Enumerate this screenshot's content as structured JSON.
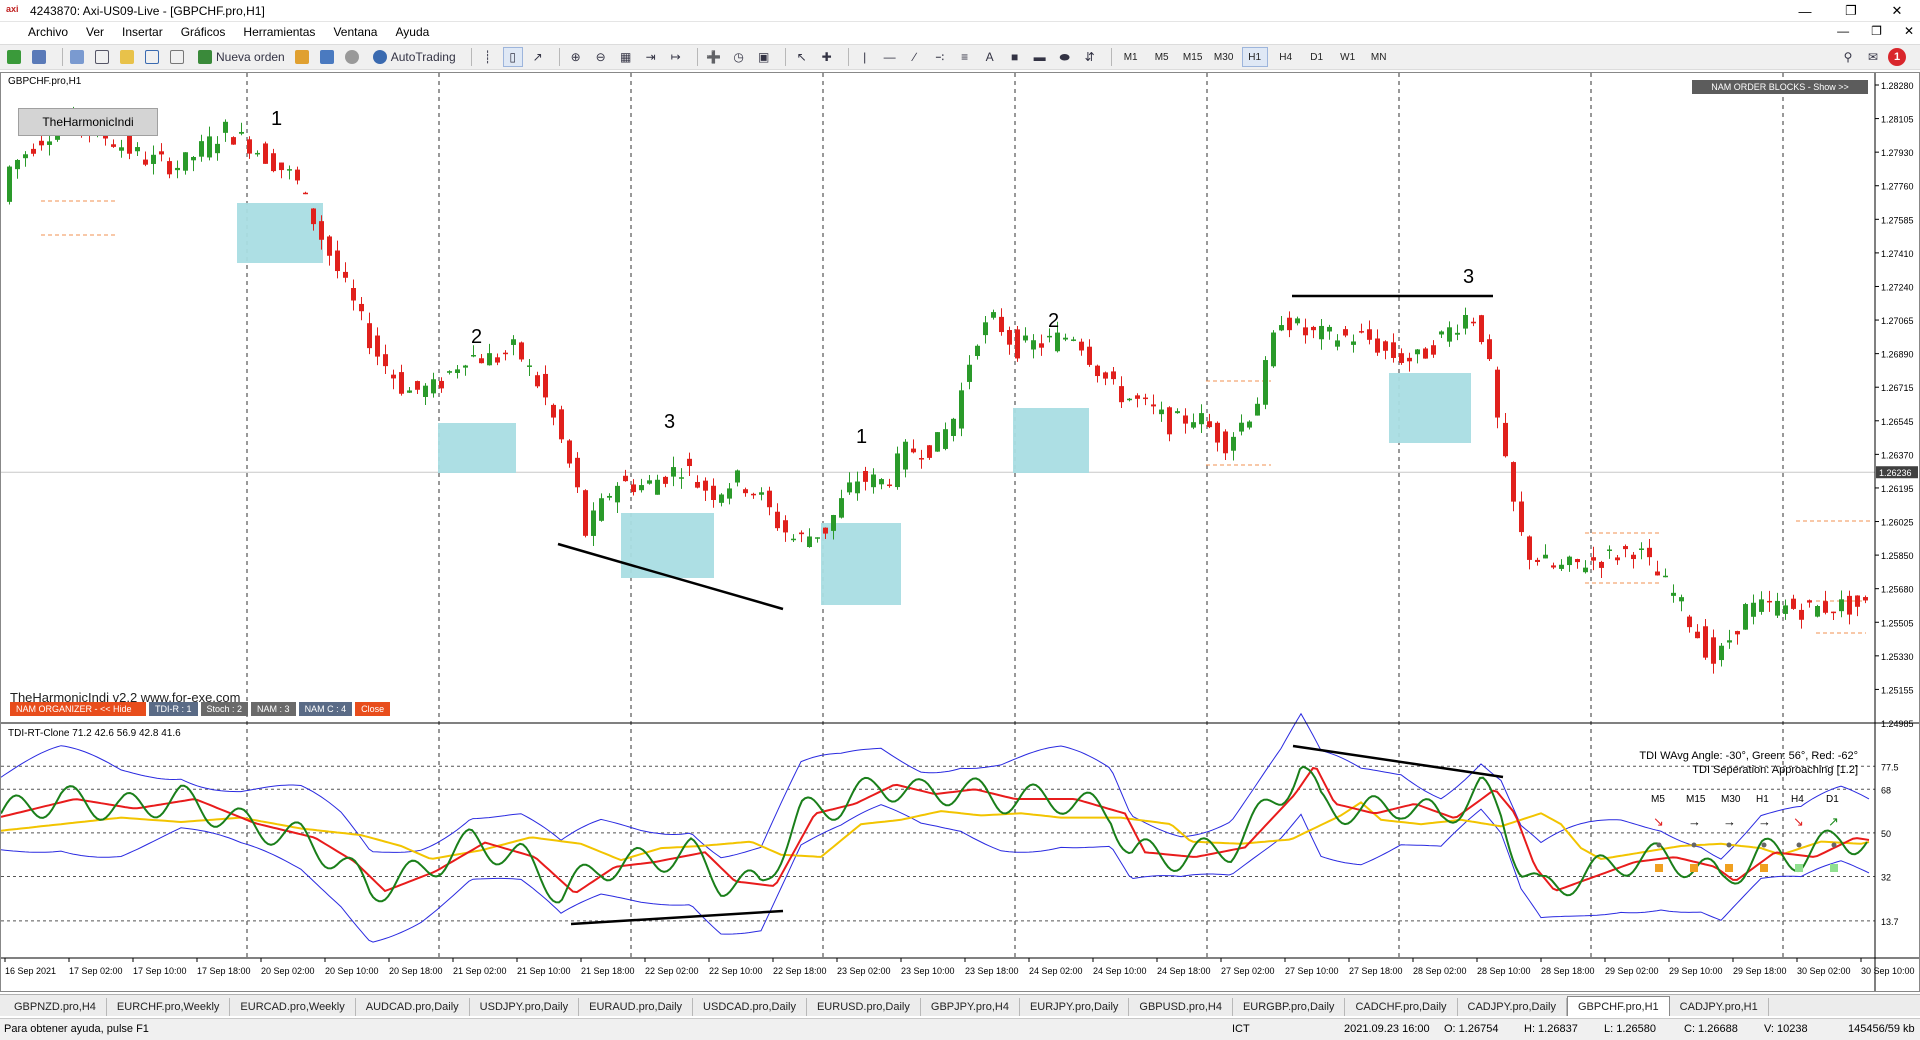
{
  "window": {
    "title": "4243870: Axi-US09-Live - [GBPCHF.pro,H1]",
    "logo": "axi"
  },
  "menu": [
    "Archivo",
    "Ver",
    "Insertar",
    "Gráficos",
    "Herramientas",
    "Ventana",
    "Ayuda"
  ],
  "toolbar": {
    "new_order": "Nueva orden",
    "autotrading": "AutoTrading",
    "timeframes": [
      "M1",
      "M5",
      "M15",
      "M30",
      "H1",
      "H4",
      "D1",
      "W1",
      "MN"
    ],
    "active_timeframe": "H1",
    "alert_count": "1"
  },
  "chart": {
    "symbol_label": "GBPCHF.pro,H1",
    "indicator_button": "TheHarmonicIndi",
    "brand_text": "TheHarmonicIndi v2.2 www.for-exe.com",
    "buttons": [
      {
        "label": "NAM ORGANIZER - << Hide",
        "color": "#e84d1c"
      },
      {
        "label": "TDI-R : 1",
        "color": "#5a6b86"
      },
      {
        "label": "Stoch : 2",
        "color": "#6a6a6a"
      },
      {
        "label": "NAM : 3",
        "color": "#6a6a6a"
      },
      {
        "label": "NAM C : 4",
        "color": "#5a6b86"
      },
      {
        "label": "Close",
        "color": "#e84d1c"
      }
    ],
    "nam_blocks_button": "NAM ORDER BLOCKS - Show >>",
    "price_axis": [
      "1.28280",
      "1.28105",
      "1.27930",
      "1.27760",
      "1.27585",
      "1.27410",
      "1.27240",
      "1.27065",
      "1.26890",
      "1.26715",
      "1.26545",
      "1.26370",
      "1.26195",
      "1.26025",
      "1.25850",
      "1.25680",
      "1.25505",
      "1.25330",
      "1.25155",
      "1.24985"
    ],
    "current_price": "1.26236",
    "wave_labels": [
      "1",
      "2",
      "3",
      "1",
      "2",
      "3"
    ],
    "time_axis": [
      "16 Sep 2021",
      "17 Sep 02:00",
      "17 Sep 10:00",
      "17 Sep 18:00",
      "20 Sep 02:00",
      "20 Sep 10:00",
      "20 Sep 18:00",
      "21 Sep 02:00",
      "21 Sep 10:00",
      "21 Sep 18:00",
      "22 Sep 02:00",
      "22 Sep 10:00",
      "22 Sep 18:00",
      "23 Sep 02:00",
      "23 Sep 10:00",
      "23 Sep 18:00",
      "24 Sep 02:00",
      "24 Sep 10:00",
      "24 Sep 18:00",
      "27 Sep 02:00",
      "27 Sep 10:00",
      "27 Sep 18:00",
      "28 Sep 02:00",
      "28 Sep 10:00",
      "28 Sep 18:00",
      "29 Sep 02:00",
      "29 Sep 10:00",
      "29 Sep 18:00",
      "30 Sep 02:00",
      "30 Sep 10:00"
    ]
  },
  "tdi": {
    "label": "TDI-RT-Clone 71.2 42.6 56.9 42.8 41.6",
    "angle_text": "TDI WAvg Angle: -30°, Green: 56°, Red: -62°",
    "separation_text": "TDI Seperation: Approaching [1.2]",
    "levels": [
      "77.5",
      "68",
      "50",
      "32",
      "13.7"
    ],
    "mtf": [
      "M5",
      "M15",
      "M30",
      "H1",
      "H4",
      "D1"
    ]
  },
  "tabs": [
    "GBPNZD.pro,H4",
    "EURCHF.pro,Weekly",
    "EURCAD.pro,Weekly",
    "AUDCAD.pro,Daily",
    "USDJPY.pro,Daily",
    "EURAUD.pro,Daily",
    "USDCAD.pro,Daily",
    "EURUSD.pro,Daily",
    "GBPJPY.pro,H4",
    "EURJPY.pro,Daily",
    "GBPUSD.pro,H4",
    "EURGBP.pro,Daily",
    "CADCHF.pro,Daily",
    "CADJPY.pro,Daily",
    "GBPCHF.pro,H1",
    "CADJPY.pro,H1"
  ],
  "active_tab": "GBPCHF.pro,H1",
  "status": {
    "help": "Para obtener ayuda, pulse F1",
    "tz": "ICT",
    "datetime": "2021.09.23 16:00",
    "open": "O: 1.26754",
    "high": "H: 1.26837",
    "low": "L: 1.26580",
    "close": "C: 1.26688",
    "volume": "V: 10238",
    "traffic": "145456/59 kb"
  },
  "colors": {
    "bull": "#2a9a2a",
    "bear": "#e0201c",
    "zone": "#a9dde3",
    "tdi_green": "#1a7f1a",
    "tdi_red": "#e81c1c",
    "tdi_yellow": "#f2c400",
    "tdi_blue": "#2a2ae0"
  }
}
